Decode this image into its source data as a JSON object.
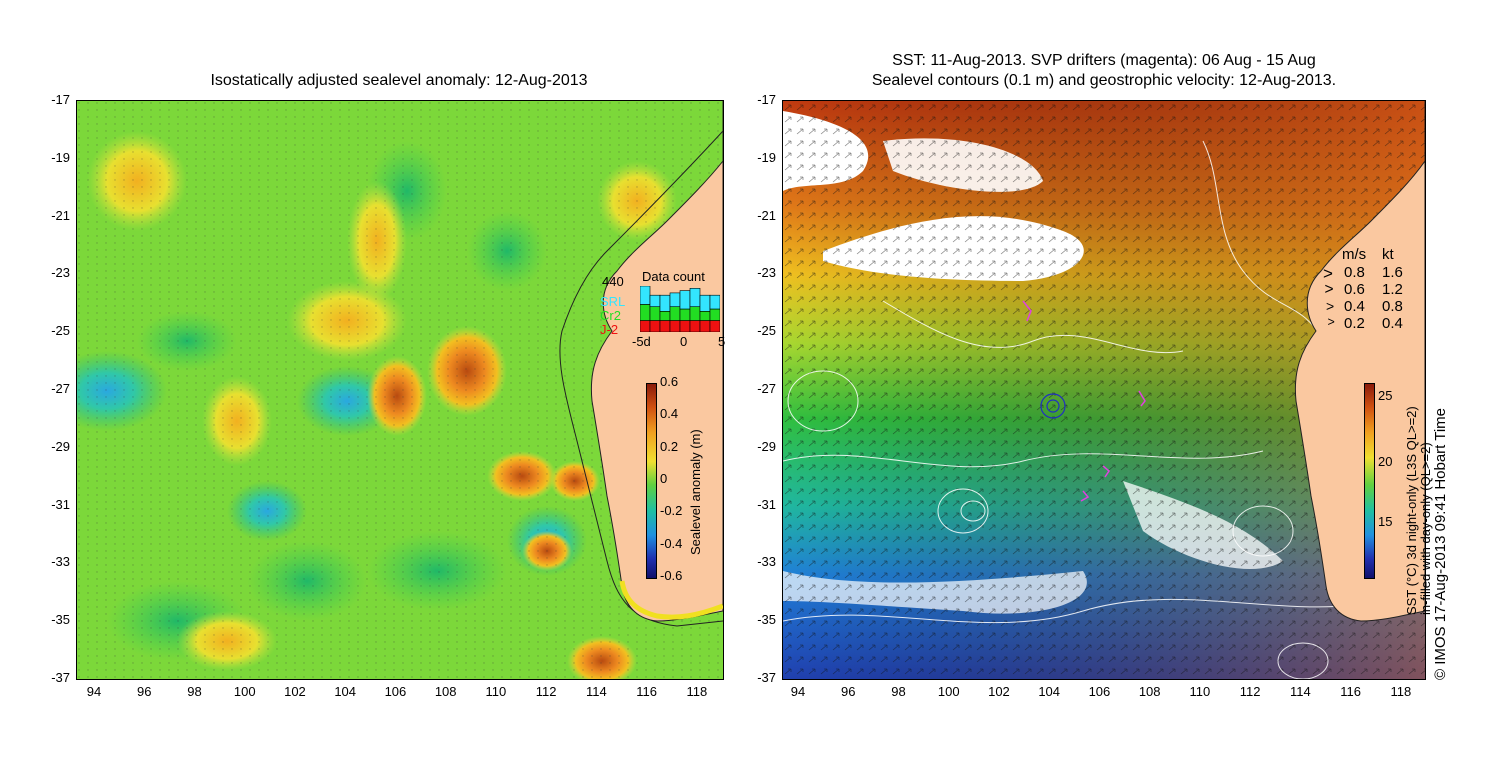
{
  "left_panel": {
    "title": "Isostatically adjusted sealevel anomaly: 12-Aug-2013",
    "x_ticks": [
      "94",
      "96",
      "98",
      "100",
      "102",
      "104",
      "106",
      "108",
      "110",
      "112",
      "114",
      "116",
      "118"
    ],
    "y_ticks": [
      "-17",
      "-19",
      "-21",
      "-23",
      "-25",
      "-27",
      "-29",
      "-31",
      "-33",
      "-35",
      "-37"
    ],
    "data_count": {
      "label": "Data count",
      "max_value": "440",
      "legend": [
        {
          "name": "SRL",
          "color": "#33e5ff"
        },
        {
          "name": "Cr2",
          "color": "#22dd22"
        },
        {
          "name": "J-2",
          "color": "#ee1111"
        }
      ],
      "x_ticks": [
        "-5d",
        "0",
        "5"
      ],
      "bars": [
        {
          "j2": 0.25,
          "cr2": 0.35,
          "srl": 0.4
        },
        {
          "j2": 0.25,
          "cr2": 0.3,
          "srl": 0.25
        },
        {
          "j2": 0.25,
          "cr2": 0.2,
          "srl": 0.35
        },
        {
          "j2": 0.25,
          "cr2": 0.3,
          "srl": 0.3
        },
        {
          "j2": 0.25,
          "cr2": 0.25,
          "srl": 0.4
        },
        {
          "j2": 0.25,
          "cr2": 0.3,
          "srl": 0.4
        },
        {
          "j2": 0.25,
          "cr2": 0.2,
          "srl": 0.35
        },
        {
          "j2": 0.25,
          "cr2": 0.25,
          "srl": 0.3
        }
      ]
    },
    "colorbar": {
      "label": "Sealevel anomaly (m)",
      "ticks": [
        "0.6",
        "0.4",
        "0.2",
        "0",
        "-0.2",
        "-0.4",
        "-0.6"
      ]
    }
  },
  "right_panel": {
    "title_line1": "SST: 11-Aug-2013. SVP drifters (magenta): 06 Aug - 15 Aug",
    "title_line2": "Sealevel contours (0.1 m) and geostrophic velocity: 12-Aug-2013.",
    "x_ticks": [
      "94",
      "96",
      "98",
      "100",
      "102",
      "104",
      "106",
      "108",
      "110",
      "112",
      "114",
      "116",
      "118"
    ],
    "y_ticks": [
      "-17",
      "-19",
      "-21",
      "-23",
      "-25",
      "-27",
      "-29",
      "-31",
      "-33",
      "-35",
      "-37"
    ],
    "velocity_legend": {
      "header_ms": "m/s",
      "header_kt": "kt",
      "rows": [
        {
          "ms": "0.8",
          "kt": "1.6"
        },
        {
          "ms": "0.6",
          "kt": "1.2"
        },
        {
          "ms": "0.4",
          "kt": "0.8"
        },
        {
          "ms": "0.2",
          "kt": "0.4"
        }
      ]
    },
    "colorbar": {
      "ticks": [
        "25",
        "20",
        "15"
      ],
      "label_line1": "SST (°C) 3d night-only (L3S QL>=2)",
      "label_line2": "in-filled with day-only (QL>=2)"
    }
  },
  "credit": "© IMOS 17-Aug-2013 09:41 Hobart Time",
  "colors": {
    "land": "#fac8a0",
    "cloud": "#ffffff"
  }
}
